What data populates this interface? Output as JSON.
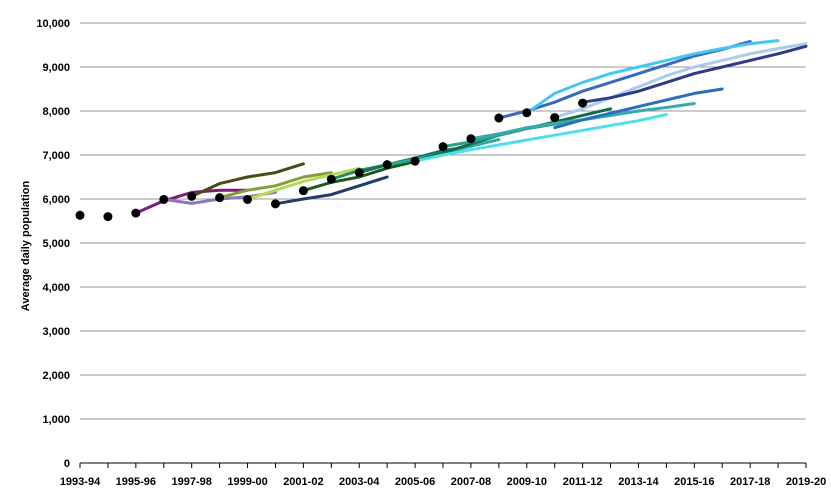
{
  "chart_data": {
    "type": "line",
    "title": "",
    "ylabel": "Average daily population",
    "xlabel": "",
    "ylim": [
      0,
      10000
    ],
    "yticks": [
      "0",
      "1,000",
      "2,000",
      "3,000",
      "4,000",
      "5,000",
      "6,000",
      "7,000",
      "8,000",
      "9,000",
      "10,000"
    ],
    "x_labels": [
      "1993-94",
      "1995-96",
      "1997-98",
      "1999-00",
      "2001-02",
      "2003-04",
      "2005-06",
      "2007-08",
      "2009-10",
      "2011-12",
      "2013-14",
      "2015-16",
      "2017-18",
      "2019-20"
    ],
    "x_categories": [
      "1993-94",
      "1994-95",
      "1995-96",
      "1996-97",
      "1997-98",
      "1998-99",
      "1999-00",
      "2000-01",
      "2001-02",
      "2002-03",
      "2003-04",
      "2004-05",
      "2005-06",
      "2006-07",
      "2007-08",
      "2008-09",
      "2009-10",
      "2010-11",
      "2011-12",
      "2012-13",
      "2013-14",
      "2014-15",
      "2015-16",
      "2016-17",
      "2017-18",
      "2018-19",
      "2019-20"
    ],
    "grid": true,
    "legend": "none",
    "actual": {
      "color": "#000000",
      "points": [
        [
          "1993-94",
          5630
        ],
        [
          "1994-95",
          5600
        ],
        [
          "1995-96",
          5680
        ],
        [
          "1996-97",
          5990
        ],
        [
          "1997-98",
          6060
        ],
        [
          "1998-99",
          6030
        ],
        [
          "1999-00",
          5990
        ],
        [
          "2000-01",
          5890
        ],
        [
          "2001-02",
          6190
        ],
        [
          "2002-03",
          6450
        ],
        [
          "2003-04",
          6600
        ],
        [
          "2004-05",
          6780
        ],
        [
          "2005-06",
          6860
        ],
        [
          "2006-07",
          7190
        ],
        [
          "2007-08",
          7370
        ],
        [
          "2008-09",
          7840
        ],
        [
          "2009-10",
          7960
        ],
        [
          "2010-11",
          7850
        ],
        [
          "2011-12",
          8180
        ]
      ]
    },
    "projections": [
      {
        "color": "#7a1f7a",
        "points": [
          [
            "1995-96",
            5680
          ],
          [
            "1996-97",
            5960
          ],
          [
            "1997-98",
            6150
          ],
          [
            "1998-99",
            6200
          ],
          [
            "1999-00",
            6200
          ]
        ]
      },
      {
        "color": "#8a7ab8",
        "points": [
          [
            "1996-97",
            5990
          ],
          [
            "1997-98",
            5900
          ],
          [
            "1998-99",
            6000
          ],
          [
            "1999-00",
            6050
          ],
          [
            "2000-01",
            6150
          ]
        ]
      },
      {
        "color": "#4a4a16",
        "points": [
          [
            "1997-98",
            6060
          ],
          [
            "1998-99",
            6350
          ],
          [
            "1999-00",
            6500
          ],
          [
            "2000-01",
            6600
          ],
          [
            "2001-02",
            6800
          ]
        ]
      },
      {
        "color": "#84a03c",
        "points": [
          [
            "1998-99",
            6030
          ],
          [
            "1999-00",
            6200
          ],
          [
            "2000-01",
            6300
          ],
          [
            "2001-02",
            6500
          ],
          [
            "2002-03",
            6600
          ]
        ]
      },
      {
        "color": "#b8d85a",
        "points": [
          [
            "1999-00",
            5990
          ],
          [
            "2000-01",
            6200
          ],
          [
            "2001-02",
            6400
          ],
          [
            "2002-03",
            6550
          ],
          [
            "2003-04",
            6700
          ]
        ]
      },
      {
        "color": "#1f3f66",
        "points": [
          [
            "2000-01",
            5890
          ],
          [
            "2001-02",
            6000
          ],
          [
            "2002-03",
            6100
          ],
          [
            "2003-04",
            6300
          ],
          [
            "2004-05",
            6500
          ]
        ]
      },
      {
        "color": "#1a5a1a",
        "points": [
          [
            "2001-02",
            6190
          ],
          [
            "2002-03",
            6380
          ],
          [
            "2003-04",
            6500
          ],
          [
            "2004-05",
            6700
          ],
          [
            "2005-06",
            6850
          ]
        ]
      },
      {
        "color": "#2b8a5a",
        "points": [
          [
            "2002-03",
            6450
          ],
          [
            "2003-04",
            6650
          ],
          [
            "2004-05",
            6780
          ],
          [
            "2005-06",
            6900
          ],
          [
            "2006-07",
            7050
          ]
        ]
      },
      {
        "color": "#1a6e5a",
        "points": [
          [
            "2003-04",
            6600
          ],
          [
            "2004-05",
            6780
          ],
          [
            "2005-06",
            6930
          ],
          [
            "2006-07",
            7100
          ],
          [
            "2007-08",
            7200
          ]
        ]
      },
      {
        "color": "#2aa89a",
        "points": [
          [
            "2004-05",
            6780
          ],
          [
            "2005-06",
            6900
          ],
          [
            "2006-07",
            7050
          ],
          [
            "2007-08",
            7200
          ],
          [
            "2008-09",
            7350
          ]
        ]
      },
      {
        "color": "#0e6e4e",
        "points": [
          [
            "2005-06",
            6860
          ],
          [
            "2006-07",
            7050
          ],
          [
            "2007-08",
            7250
          ],
          [
            "2008-09",
            7450
          ],
          [
            "2009-10",
            7600
          ],
          [
            "2010-11",
            7750
          ],
          [
            "2011-12",
            7900
          ],
          [
            "2012-13",
            8050
          ]
        ]
      },
      {
        "color": "#2d9e8e",
        "points": [
          [
            "2006-07",
            7190
          ],
          [
            "2007-08",
            7300
          ],
          [
            "2008-09",
            7450
          ],
          [
            "2009-10",
            7600
          ],
          [
            "2010-11",
            7700
          ],
          [
            "2011-12",
            7800
          ],
          [
            "2012-13",
            7900
          ],
          [
            "2013-14",
            8000
          ]
        ]
      },
      {
        "color": "#3aa9a9",
        "points": [
          [
            "2007-08",
            7370
          ],
          [
            "2008-09",
            7480
          ],
          [
            "2009-10",
            7620
          ],
          [
            "2010-11",
            7720
          ],
          [
            "2011-12",
            7800
          ],
          [
            "2012-13",
            7900
          ],
          [
            "2013-14",
            8000
          ],
          [
            "2014-15",
            8080
          ],
          [
            "2015-16",
            8170
          ]
        ]
      },
      {
        "color": "#4de0ea",
        "points": [
          [
            "2005-06",
            6860
          ],
          [
            "2006-07",
            7000
          ],
          [
            "2007-08",
            7120
          ],
          [
            "2008-09",
            7230
          ],
          [
            "2009-10",
            7340
          ],
          [
            "2010-11",
            7450
          ],
          [
            "2011-12",
            7560
          ],
          [
            "2012-13",
            7670
          ],
          [
            "2013-14",
            7780
          ],
          [
            "2014-15",
            7920
          ]
        ]
      },
      {
        "color": "#3a6abf",
        "points": [
          [
            "2008-09",
            7840
          ],
          [
            "2009-10",
            8000
          ],
          [
            "2010-11",
            8200
          ],
          [
            "2011-12",
            8450
          ],
          [
            "2012-13",
            8650
          ],
          [
            "2013-14",
            8850
          ],
          [
            "2014-15",
            9050
          ],
          [
            "2015-16",
            9250
          ],
          [
            "2016-17",
            9400
          ],
          [
            "2017-18",
            9580
          ]
        ]
      },
      {
        "color": "#44c8ee",
        "points": [
          [
            "2009-10",
            7960
          ],
          [
            "2010-11",
            8400
          ],
          [
            "2011-12",
            8650
          ],
          [
            "2012-13",
            8850
          ],
          [
            "2013-14",
            9000
          ],
          [
            "2014-15",
            9150
          ],
          [
            "2015-16",
            9300
          ],
          [
            "2016-17",
            9420
          ],
          [
            "2017-18",
            9530
          ],
          [
            "2018-19",
            9600
          ]
        ]
      },
      {
        "color": "#a8ccea",
        "points": [
          [
            "2010-11",
            7850
          ],
          [
            "2011-12",
            8050
          ],
          [
            "2012-13",
            8300
          ],
          [
            "2013-14",
            8550
          ],
          [
            "2014-15",
            8800
          ],
          [
            "2015-16",
            9000
          ],
          [
            "2016-17",
            9150
          ],
          [
            "2017-18",
            9300
          ],
          [
            "2018-19",
            9420
          ],
          [
            "2019-20",
            9530
          ]
        ]
      },
      {
        "color": "#2a70c0",
        "points": [
          [
            "2010-11",
            7620
          ],
          [
            "2011-12",
            7800
          ],
          [
            "2012-13",
            7950
          ],
          [
            "2013-14",
            8100
          ],
          [
            "2014-15",
            8250
          ],
          [
            "2015-16",
            8400
          ],
          [
            "2016-17",
            8500
          ]
        ]
      },
      {
        "color": "#2e3a8a",
        "points": [
          [
            "2011-12",
            8200
          ],
          [
            "2012-13",
            8300
          ],
          [
            "2013-14",
            8450
          ],
          [
            "2014-15",
            8650
          ],
          [
            "2015-16",
            8850
          ],
          [
            "2016-17",
            9000
          ],
          [
            "2017-18",
            9150
          ],
          [
            "2018-19",
            9300
          ],
          [
            "2019-20",
            9470
          ]
        ]
      }
    ]
  }
}
